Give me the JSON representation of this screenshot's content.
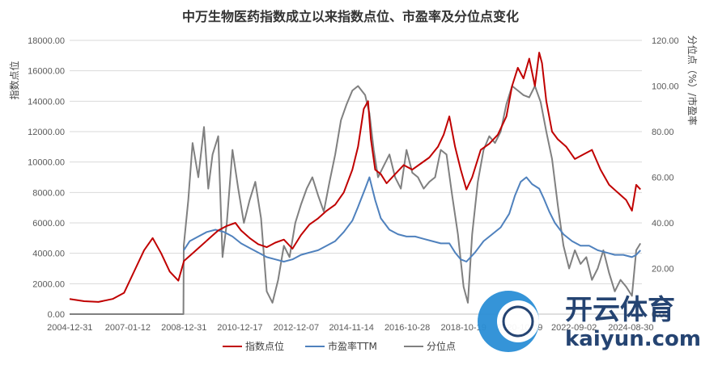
{
  "chart_data": {
    "type": "line",
    "title": "中万生物医药指数成立以来指数点位、市盈率及分位点变化",
    "ylabel_left": "指数点位",
    "ylabel_right": "分位点（%）/市盈率",
    "ylim_left": [
      0,
      18000
    ],
    "ylim_right": [
      0,
      120
    ],
    "yticks_left": [
      "0.00",
      "2000.00",
      "4000.00",
      "6000.00",
      "8000.00",
      "10000.00",
      "12000.00",
      "14000.00",
      "16000.00",
      "18000.00"
    ],
    "yticks_right": [
      "0.00",
      "20.00",
      "40.00",
      "60.00",
      "80.00",
      "100.00",
      "120.00"
    ],
    "xticks": [
      "2004-12-31",
      "2007-01-12",
      "2008-12-31",
      "2010-12-17",
      "2012-12-07",
      "2014-11-14",
      "2016-10-28",
      "2018-10-19",
      "2020-10-09",
      "2022-09-02",
      "2024-08-30"
    ],
    "legend_position": "bottom",
    "series": [
      {
        "name": "指数点位",
        "axis": "left",
        "color": "#c00000",
        "x": [
          2004.99,
          2005.5,
          2006.0,
          2006.5,
          2006.9,
          2007.3,
          2007.6,
          2007.9,
          2008.2,
          2008.5,
          2008.8,
          2009.0,
          2009.3,
          2009.6,
          2009.9,
          2010.2,
          2010.5,
          2010.8,
          2011.0,
          2011.3,
          2011.6,
          2011.9,
          2012.2,
          2012.5,
          2012.8,
          2013.1,
          2013.4,
          2013.7,
          2014.0,
          2014.3,
          2014.6,
          2014.9,
          2015.1,
          2015.3,
          2015.45,
          2015.55,
          2015.7,
          2015.9,
          2016.1,
          2016.4,
          2016.7,
          2017.0,
          2017.3,
          2017.6,
          2017.9,
          2018.1,
          2018.3,
          2018.5,
          2018.7,
          2018.9,
          2019.1,
          2019.4,
          2019.7,
          2020.0,
          2020.3,
          2020.5,
          2020.7,
          2020.9,
          2021.1,
          2021.3,
          2021.45,
          2021.55,
          2021.7,
          2021.9,
          2022.1,
          2022.4,
          2022.7,
          2023.0,
          2023.3,
          2023.6,
          2023.9,
          2024.2,
          2024.5,
          2024.7,
          2024.85,
          2025.0
        ],
        "values": [
          1000,
          850,
          800,
          1000,
          1400,
          3000,
          4200,
          5000,
          4000,
          2800,
          2200,
          3500,
          4000,
          4500,
          5000,
          5500,
          5800,
          6000,
          5500,
          5000,
          4600,
          4400,
          4700,
          4900,
          4300,
          5200,
          5900,
          6300,
          6800,
          7200,
          8000,
          9500,
          11000,
          13500,
          14000,
          11500,
          9500,
          9200,
          8600,
          9200,
          9800,
          9500,
          9900,
          10300,
          11000,
          11800,
          13000,
          11000,
          9500,
          8200,
          9000,
          10800,
          11200,
          11800,
          13000,
          15000,
          16200,
          15500,
          16800,
          15000,
          17200,
          16500,
          14000,
          12000,
          11500,
          11000,
          10200,
          10500,
          10800,
          9500,
          8500,
          8000,
          7500,
          6800,
          8500,
          8200
        ]
      },
      {
        "name": "市盈率TTM",
        "axis": "right",
        "color": "#4f81bd",
        "x": [
          2008.99,
          2009.2,
          2009.5,
          2009.8,
          2010.1,
          2010.4,
          2010.7,
          2011.0,
          2011.3,
          2011.6,
          2011.9,
          2012.2,
          2012.5,
          2012.8,
          2013.1,
          2013.4,
          2013.7,
          2014.0,
          2014.3,
          2014.6,
          2014.9,
          2015.1,
          2015.35,
          2015.5,
          2015.7,
          2015.9,
          2016.2,
          2016.5,
          2016.8,
          2017.1,
          2017.4,
          2017.7,
          2018.0,
          2018.3,
          2018.5,
          2018.7,
          2018.9,
          2019.2,
          2019.5,
          2019.8,
          2020.1,
          2020.4,
          2020.6,
          2020.8,
          2021.0,
          2021.2,
          2021.45,
          2021.6,
          2021.8,
          2022.0,
          2022.3,
          2022.6,
          2022.9,
          2023.2,
          2023.5,
          2023.8,
          2024.1,
          2024.4,
          2024.7,
          2024.85,
          2025.0
        ],
        "values": [
          28,
          32,
          34,
          36,
          37,
          36,
          34,
          31,
          29,
          27,
          25,
          24,
          23,
          24,
          26,
          27,
          28,
          30,
          32,
          36,
          41,
          47,
          55,
          60,
          50,
          42,
          37,
          35,
          34,
          34,
          33,
          32,
          31,
          31,
          27,
          24,
          23,
          27,
          32,
          35,
          38,
          44,
          52,
          58,
          60,
          57,
          55,
          51,
          45,
          40,
          35,
          32,
          30,
          30,
          28,
          27,
          26,
          26,
          25,
          26,
          28
        ]
      },
      {
        "name": "分位点",
        "axis": "right",
        "color": "#808080",
        "x": [
          2004.99,
          2008.98,
          2008.99,
          2009.15,
          2009.3,
          2009.5,
          2009.7,
          2009.85,
          2010.0,
          2010.2,
          2010.35,
          2010.5,
          2010.7,
          2010.9,
          2011.1,
          2011.3,
          2011.5,
          2011.7,
          2011.9,
          2012.1,
          2012.3,
          2012.5,
          2012.7,
          2012.9,
          2013.1,
          2013.3,
          2013.5,
          2013.7,
          2013.9,
          2014.1,
          2014.3,
          2014.5,
          2014.7,
          2014.9,
          2015.1,
          2015.35,
          2015.5,
          2015.65,
          2015.8,
          2016.0,
          2016.2,
          2016.4,
          2016.6,
          2016.8,
          2017.0,
          2017.2,
          2017.4,
          2017.6,
          2017.8,
          2018.0,
          2018.2,
          2018.4,
          2018.6,
          2018.8,
          2018.95,
          2019.1,
          2019.3,
          2019.5,
          2019.7,
          2019.9,
          2020.1,
          2020.3,
          2020.5,
          2020.7,
          2020.9,
          2021.1,
          2021.3,
          2021.5,
          2021.7,
          2021.9,
          2022.1,
          2022.3,
          2022.5,
          2022.7,
          2022.9,
          2023.1,
          2023.3,
          2023.5,
          2023.7,
          2023.9,
          2024.1,
          2024.3,
          2024.5,
          2024.7,
          2024.85,
          2025.0
        ],
        "values": [
          0,
          0,
          30,
          50,
          75,
          60,
          82,
          55,
          70,
          78,
          25,
          40,
          72,
          55,
          40,
          50,
          58,
          42,
          10,
          5,
          15,
          30,
          25,
          40,
          48,
          55,
          60,
          52,
          45,
          58,
          70,
          85,
          92,
          98,
          100,
          96,
          88,
          72,
          60,
          65,
          70,
          60,
          55,
          72,
          62,
          60,
          55,
          58,
          60,
          72,
          70,
          52,
          35,
          12,
          5,
          35,
          58,
          72,
          78,
          75,
          80,
          92,
          100,
          98,
          96,
          95,
          100,
          93,
          80,
          68,
          48,
          30,
          20,
          28,
          22,
          25,
          15,
          20,
          28,
          18,
          10,
          15,
          12,
          8,
          28,
          31
        ]
      }
    ]
  },
  "watermark": {
    "brand_text": "开云体育",
    "url_text": "kaiyun.com"
  }
}
